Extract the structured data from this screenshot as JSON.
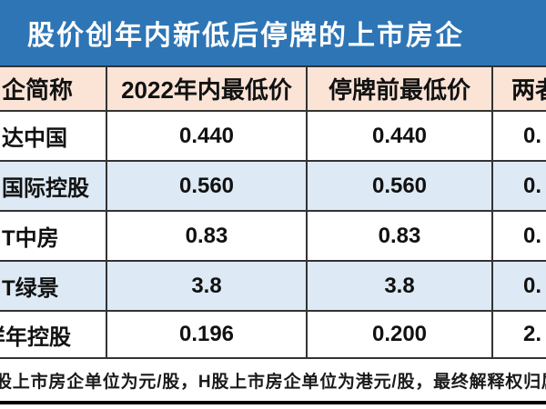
{
  "title": "股价创年内新低后停牌的上市房企",
  "chart_data": {
    "type": "table",
    "title": "股价创年内新低后停牌的上市房企",
    "columns": [
      "企简称",
      "2022年内最低价",
      "停牌前最低价",
      "两者"
    ],
    "rows": [
      [
        "达中国",
        "0.440",
        "0.440",
        "0."
      ],
      [
        "国际控股",
        "0.560",
        "0.560",
        "0."
      ],
      [
        "T中房",
        "0.83",
        "0.83",
        "0."
      ],
      [
        "T绿景",
        "3.8",
        "3.8",
        "0."
      ],
      [
        "样年控股",
        "0.196",
        "0.200",
        "2."
      ]
    ],
    "footnote": "股上市房企单位为元/股，H股上市房企单位为港元/股，最终解释权归属乐"
  },
  "colors": {
    "title_bar": "#2e75b6",
    "title_text": "#ffffff",
    "header_bg": "#fbe3d6",
    "alt_row_bg": "#dde9f4",
    "row_bg": "#ffffff",
    "border": "#333333",
    "text": "#111111"
  }
}
